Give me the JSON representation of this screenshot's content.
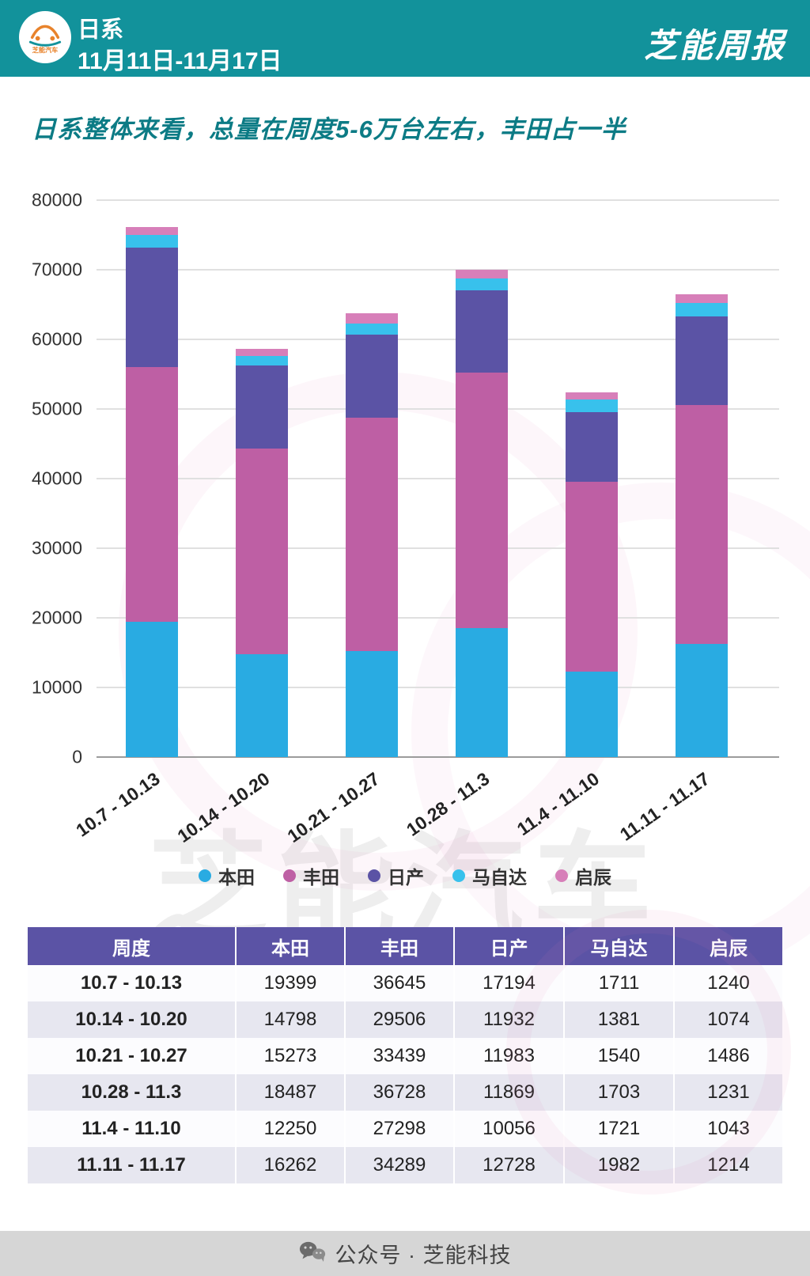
{
  "header": {
    "brand": "日系",
    "date_range": "11月11日-11月17日",
    "weekly_label": "芝能周报",
    "accent_color": "#12929B"
  },
  "title": "日系整体来看，总量在周度5-6万台左右，丰田占一半",
  "watermark": "芝能汽车",
  "chart_data": {
    "type": "bar",
    "stacked": true,
    "categories": [
      "10.7 - 10.13",
      "10.14 - 10.20",
      "10.21 - 10.27",
      "10.28 - 11.3",
      "11.4 - 11.10",
      "11.11 - 11.17"
    ],
    "series": [
      {
        "name": "本田",
        "color": "#29ABE2",
        "values": [
          19399,
          14798,
          15273,
          18487,
          12250,
          16262
        ]
      },
      {
        "name": "丰田",
        "color": "#BE5FA4",
        "values": [
          36645,
          29506,
          33439,
          36728,
          27298,
          34289
        ]
      },
      {
        "name": "日产",
        "color": "#5B53A5",
        "values": [
          17194,
          11932,
          11983,
          11869,
          10056,
          12728
        ]
      },
      {
        "name": "马自达",
        "color": "#38C1EC",
        "values": [
          1711,
          1381,
          1540,
          1703,
          1721,
          1982
        ]
      },
      {
        "name": "启辰",
        "color": "#D77FB9",
        "values": [
          1240,
          1074,
          1486,
          1231,
          1043,
          1214
        ]
      }
    ],
    "title": "",
    "xlabel": "",
    "ylabel": "",
    "ylim": [
      0,
      80000
    ],
    "ytick_step": 10000,
    "grid": true,
    "legend_position": "bottom"
  },
  "table": {
    "headers": [
      "周度",
      "本田",
      "丰田",
      "日产",
      "马自达",
      "启辰"
    ],
    "rows": [
      [
        "10.7 - 10.13",
        "19399",
        "36645",
        "17194",
        "1711",
        "1240"
      ],
      [
        "10.14 - 10.20",
        "14798",
        "29506",
        "11932",
        "1381",
        "1074"
      ],
      [
        "10.21 - 10.27",
        "15273",
        "33439",
        "11983",
        "1540",
        "1486"
      ],
      [
        "10.28 - 11.3",
        "18487",
        "36728",
        "11869",
        "1703",
        "1231"
      ],
      [
        "11.4 - 11.10",
        "12250",
        "27298",
        "10056",
        "1721",
        "1043"
      ],
      [
        "11.11 - 11.17",
        "16262",
        "34289",
        "12728",
        "1982",
        "1214"
      ]
    ]
  },
  "footer": {
    "text": "公众号 · 芝能科技"
  }
}
